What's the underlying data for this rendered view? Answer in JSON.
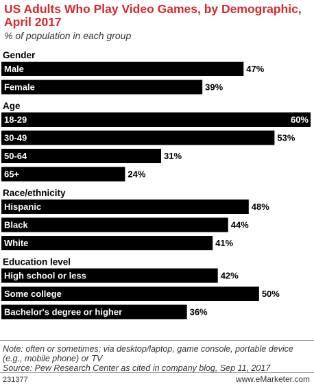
{
  "title": "US Adults Who Play Video Games, by Demographic, April 2017",
  "subtitle": "% of population in each group",
  "chart_data": {
    "type": "bar",
    "title": "US Adults Who Play Video Games, by Demographic, April 2017",
    "subtitle": "% of population in each group",
    "xlim": [
      0,
      60
    ],
    "groups": [
      {
        "name": "Gender",
        "categories": [
          "Male",
          "Female"
        ],
        "values": [
          47,
          39
        ],
        "labels": [
          "47%",
          "39%"
        ]
      },
      {
        "name": "Age",
        "categories": [
          "18-29",
          "30-49",
          "50-64",
          "65+"
        ],
        "values": [
          60,
          53,
          31,
          24
        ],
        "labels": [
          "60%",
          "53%",
          "31%",
          "24%"
        ]
      },
      {
        "name": "Race/ethnicity",
        "categories": [
          "Hispanic",
          "Black",
          "White"
        ],
        "values": [
          48,
          44,
          41
        ],
        "labels": [
          "48%",
          "44%",
          "41%"
        ]
      },
      {
        "name": "Education level",
        "categories": [
          "High school or less",
          "Some college",
          "Bachelor's degree or higher"
        ],
        "values": [
          42,
          50,
          36
        ],
        "labels": [
          "42%",
          "50%",
          "36%"
        ]
      }
    ]
  },
  "note": "Note: often or sometimes; via desktop/laptop, game console, portable device (e.g., mobile phone) or TV\nSource: Pew Research Center as cited in company blog, Sep 11, 2017",
  "footer": {
    "chart_id": "231377",
    "brand": "www.eMarketer.com"
  },
  "colors": {
    "title": "#d9272e",
    "bar": "#000000",
    "bar_label": "#ffffff"
  }
}
